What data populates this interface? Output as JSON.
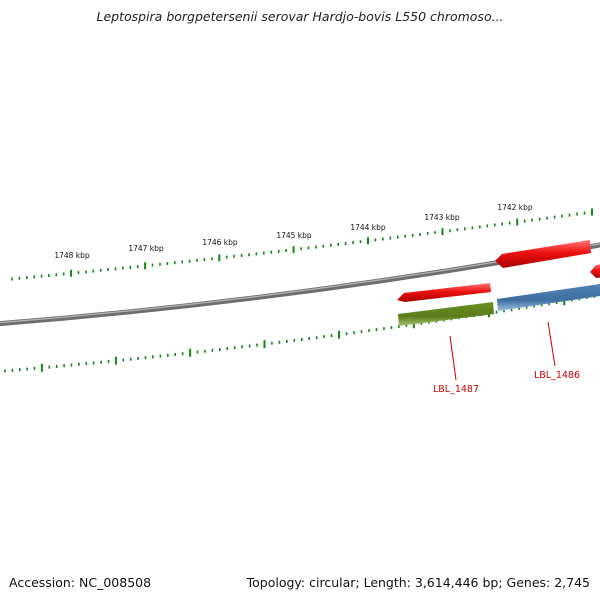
{
  "title": "Leptospira borgpetersenii serovar Hardjo-bovis L550 chromoso...",
  "footer": {
    "accession": "Accession: NC_008508",
    "summary": "Topology: circular; Length: 3,614,446 bp; Genes: 2,745"
  },
  "ruler": {
    "labels": [
      "1748 kbp",
      "1747 kbp",
      "1746 kbp",
      "1745 kbp",
      "1744 kbp",
      "1743 kbp",
      "1742 kbp"
    ]
  },
  "genes": [
    {
      "name": "LBL_1487"
    },
    {
      "name": "LBL_1486"
    }
  ],
  "colors": {
    "tick": "#118811",
    "backbone": "#7a7a7a",
    "forward_feature": "#ee1111",
    "gene_green": "#6b8e23",
    "gene_blue": "#4f83b8",
    "label_red": "#cc0000"
  }
}
